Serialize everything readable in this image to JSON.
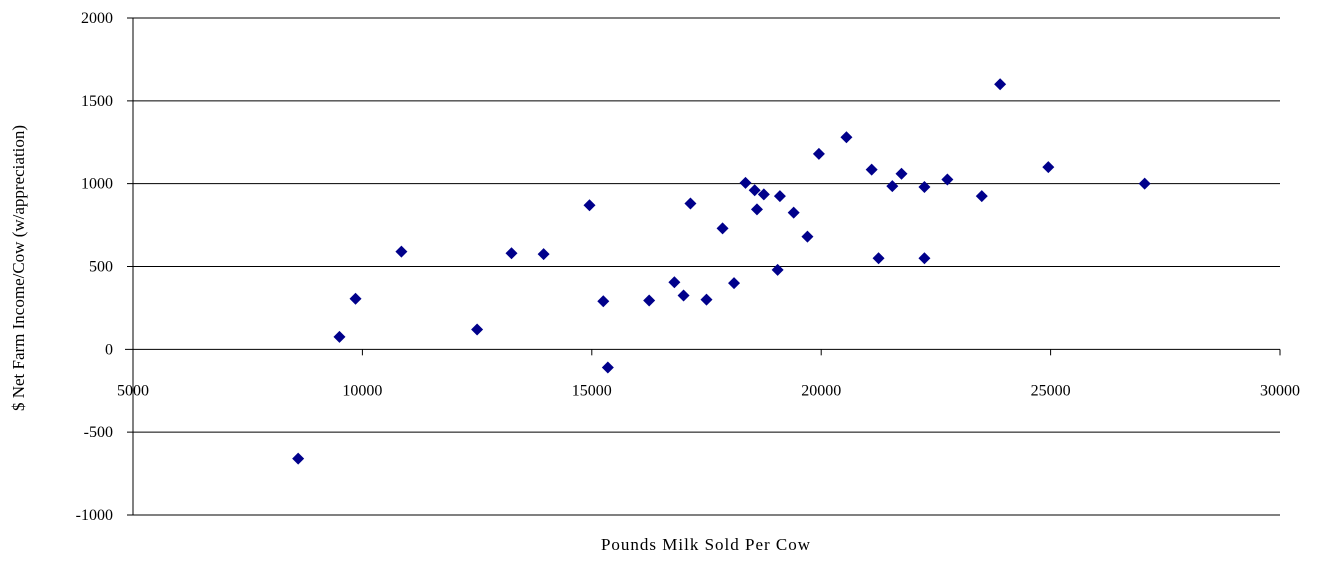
{
  "chart_data": {
    "type": "scatter",
    "title": "",
    "xlabel": "Pounds Milk Sold Per Cow",
    "ylabel": "$ Net Farm Income/Cow (w/appreciation)",
    "xlim": [
      5000,
      30000
    ],
    "ylim": [
      -1000,
      2000
    ],
    "xticks": [
      5000,
      10000,
      15000,
      20000,
      25000,
      30000
    ],
    "yticks": [
      2000,
      1500,
      1000,
      500,
      0,
      -500,
      -1000
    ],
    "grid": "horizontal",
    "legend": "none",
    "marker": "diamond",
    "marker_color": "#00008B",
    "series": [
      {
        "points": [
          [
            8600,
            -660
          ],
          [
            9500,
            75
          ],
          [
            9850,
            305
          ],
          [
            10850,
            590
          ],
          [
            12500,
            120
          ],
          [
            13250,
            580
          ],
          [
            13950,
            575
          ],
          [
            14950,
            870
          ],
          [
            15250,
            290
          ],
          [
            15350,
            -110
          ],
          [
            16250,
            295
          ],
          [
            16800,
            405
          ],
          [
            17000,
            325
          ],
          [
            17150,
            880
          ],
          [
            17500,
            300
          ],
          [
            17850,
            730
          ],
          [
            18100,
            400
          ],
          [
            18350,
            1005
          ],
          [
            18550,
            960
          ],
          [
            18600,
            845
          ],
          [
            18750,
            935
          ],
          [
            19050,
            480
          ],
          [
            19100,
            925
          ],
          [
            19400,
            825
          ],
          [
            19700,
            680
          ],
          [
            19950,
            1180
          ],
          [
            20550,
            1280
          ],
          [
            21100,
            1085
          ],
          [
            21250,
            550
          ],
          [
            21550,
            985
          ],
          [
            21750,
            1060
          ],
          [
            22250,
            980
          ],
          [
            22250,
            550
          ],
          [
            22750,
            1025
          ],
          [
            23500,
            925
          ],
          [
            23900,
            1600
          ],
          [
            24950,
            1100
          ],
          [
            27050,
            1000
          ]
        ]
      }
    ]
  }
}
